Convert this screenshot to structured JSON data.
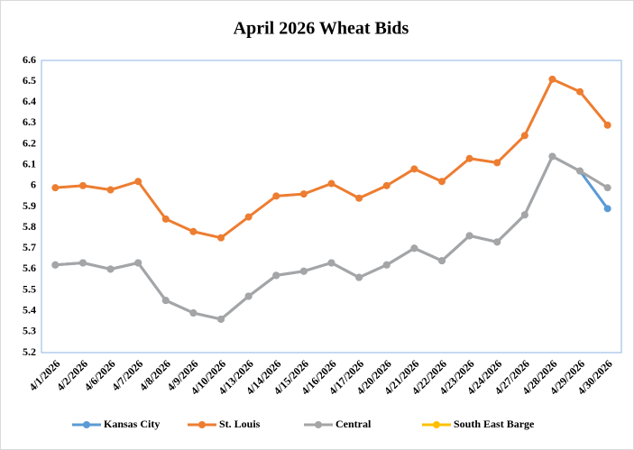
{
  "chart_data": {
    "type": "line",
    "title": "April 2026 Wheat Bids",
    "categories": [
      "4/1/2026",
      "4/2/2026",
      "4/6/2026",
      "4/7/2026",
      "4/8/2026",
      "4/9/2026",
      "4/10/2026",
      "4/13/2026",
      "4/14/2026",
      "4/15/2026",
      "4/16/2026",
      "4/17/2026",
      "4/20/2026",
      "4/21/2026",
      "4/22/2026",
      "4/23/2026",
      "4/24/2026",
      "4/27/2026",
      "4/28/2026",
      "4/29/2026",
      "4/30/2026"
    ],
    "series": [
      {
        "name": "Kansas City",
        "color": "#5b9bd5",
        "values": [
          5.62,
          5.63,
          5.6,
          5.63,
          5.45,
          5.39,
          5.36,
          5.47,
          5.57,
          5.59,
          5.63,
          5.56,
          5.62,
          5.7,
          5.64,
          5.76,
          5.73,
          5.86,
          6.14,
          6.07,
          5.89
        ]
      },
      {
        "name": "St. Louis",
        "color": "#ed7d31",
        "values": [
          5.99,
          6.0,
          5.98,
          6.02,
          5.84,
          5.78,
          5.75,
          5.85,
          5.95,
          5.96,
          6.01,
          5.94,
          6.0,
          6.08,
          6.02,
          6.13,
          6.11,
          6.24,
          6.51,
          6.45,
          6.29
        ]
      },
      {
        "name": "Central",
        "color": "#a5a5a5",
        "values": [
          5.62,
          5.63,
          5.6,
          5.63,
          5.45,
          5.39,
          5.36,
          5.47,
          5.57,
          5.59,
          5.63,
          5.56,
          5.62,
          5.7,
          5.64,
          5.76,
          5.73,
          5.86,
          6.14,
          6.07,
          5.99
        ]
      },
      {
        "name": "South East Barge",
        "color": "#ffc000",
        "values": [
          null,
          null,
          null,
          null,
          null,
          null,
          null,
          null,
          null,
          null,
          null,
          null,
          null,
          null,
          null,
          null,
          null,
          null,
          null,
          null,
          null
        ]
      }
    ],
    "ylim": [
      5.2,
      6.6
    ],
    "yticks": [
      5.2,
      5.3,
      5.4,
      5.5,
      5.6,
      5.7,
      5.8,
      5.9,
      6,
      6.1,
      6.2,
      6.3,
      6.4,
      6.5,
      6.6
    ],
    "grid": false,
    "legend": "bottom"
  }
}
